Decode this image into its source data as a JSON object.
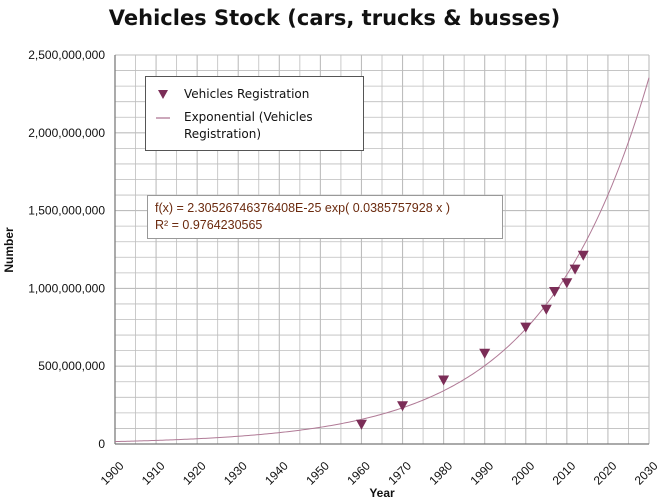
{
  "chart_data": {
    "type": "scatter",
    "title": "Vehicles Stock (cars, trucks & busses)",
    "xlabel": "Year",
    "ylabel": "Number",
    "xlim": [
      1900,
      2030
    ],
    "ylim": [
      0,
      2500000000
    ],
    "x_ticks": [
      1900,
      1910,
      1920,
      1930,
      1940,
      1950,
      1960,
      1970,
      1980,
      1990,
      2000,
      2010,
      2020,
      2030
    ],
    "x_tick_labels": [
      "1900",
      "1910",
      "1920",
      "1930",
      "1940",
      "1950",
      "1960",
      "1970",
      "1980",
      "1990",
      "2000",
      "2010",
      "2020",
      "2030"
    ],
    "y_ticks": [
      0,
      500000000,
      1000000000,
      1500000000,
      2000000000,
      2500000000
    ],
    "y_tick_labels": [
      "0",
      "500,000,000",
      "1,000,000,000",
      "1,500,000,000",
      "2,000,000,000",
      "2,500,000,000"
    ],
    "grid": true,
    "legend_position": "top-left",
    "series": [
      {
        "name": "Vehicles Registration",
        "marker": "triangle-down",
        "color": "#7b2d57",
        "points": [
          {
            "x": 1960,
            "y": 127000000
          },
          {
            "x": 1970,
            "y": 246000000
          },
          {
            "x": 1980,
            "y": 411000000
          },
          {
            "x": 1990,
            "y": 583000000
          },
          {
            "x": 2000,
            "y": 751000000
          },
          {
            "x": 2005,
            "y": 866000000
          },
          {
            "x": 2007,
            "y": 980000000
          },
          {
            "x": 2010,
            "y": 1036000000
          },
          {
            "x": 2012,
            "y": 1124000000
          },
          {
            "x": 2014,
            "y": 1213000000
          }
        ]
      }
    ],
    "trendline": {
      "name": "Exponential (Vehicles Registration)",
      "type": "exponential",
      "color": "#b07a96",
      "a": 2.30526746376408e-25,
      "b": 0.0385757928
    },
    "annotation": {
      "equation": "f(x) = 2.30526746376408E-25 exp( 0.0385757928 x )",
      "r_squared": "R² = 0.9764230565"
    }
  },
  "legend": {
    "marker_label": "Vehicles Registration",
    "trend_label": "Exponential (Vehicles Registration)"
  },
  "colors": {
    "grid": "#bdbdbd",
    "axis": "#777777",
    "marker": "#7b2d57",
    "trend": "#b07a96",
    "equation_text": "#6b2a0e"
  }
}
